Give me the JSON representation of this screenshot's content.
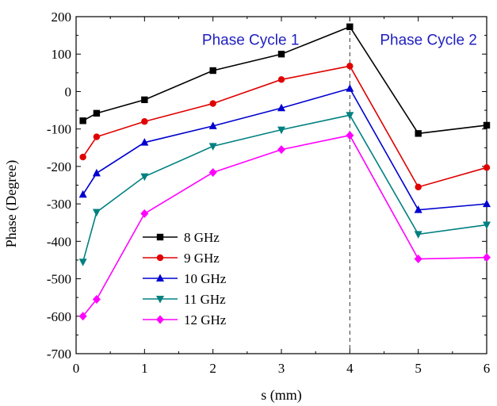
{
  "chart_data": {
    "type": "line",
    "xlabel": "s (mm)",
    "ylabel": "Phase (Degree)",
    "xlim": [
      0,
      6
    ],
    "ylim": [
      -700,
      200
    ],
    "xticks": [
      0,
      1,
      2,
      3,
      4,
      5,
      6
    ],
    "yticks": [
      -700,
      -600,
      -500,
      -400,
      -300,
      -200,
      -100,
      0,
      100,
      200
    ],
    "xtick_labels": [
      "0",
      "1",
      "2",
      "3",
      "4",
      "5",
      "6"
    ],
    "ytick_labels": [
      "-700",
      "-600",
      "-500",
      "-400",
      "-300",
      "-200",
      "-100",
      "0",
      "100",
      "200"
    ],
    "grid": false,
    "legend_position": "lower-left",
    "annotations": [
      {
        "text": "Phase Cycle 1",
        "x": 2.55,
        "y": 140,
        "color": "#1f1fbf"
      },
      {
        "text": "Phase Cycle 2",
        "x": 5.15,
        "y": 140,
        "color": "#1f1fbf"
      }
    ],
    "vline": {
      "x": 4,
      "style": "dashed"
    },
    "series": [
      {
        "name": "8 GHz",
        "color": "#000000",
        "marker": "square",
        "x": [
          0.1,
          0.3,
          1,
          2,
          3,
          4,
          5,
          6
        ],
        "y": [
          -78,
          -58,
          -22,
          56,
          100,
          173,
          -112,
          -90
        ]
      },
      {
        "name": "9 GHz",
        "color": "#e00000",
        "marker": "circle",
        "x": [
          0.1,
          0.3,
          1,
          2,
          3,
          4,
          5,
          6
        ],
        "y": [
          -175,
          -121,
          -80,
          -32,
          32,
          68,
          -255,
          -203
        ]
      },
      {
        "name": "10 GHz",
        "color": "#0000d0",
        "marker": "triangle-up",
        "x": [
          0.1,
          0.3,
          1,
          2,
          3,
          4,
          5,
          6
        ],
        "y": [
          -275,
          -218,
          -136,
          -92,
          -44,
          8,
          -316,
          -300
        ]
      },
      {
        "name": "11 GHz",
        "color": "#008080",
        "marker": "triangle-down",
        "x": [
          0.1,
          0.3,
          1,
          2,
          3,
          4,
          5,
          6
        ],
        "y": [
          -455,
          -322,
          -227,
          -146,
          -102,
          -63,
          -381,
          -356
        ]
      },
      {
        "name": "12 GHz",
        "color": "#ff00ff",
        "marker": "diamond",
        "x": [
          0.1,
          0.3,
          1,
          2,
          3,
          4,
          5,
          6
        ],
        "y": [
          -600,
          -555,
          -326,
          -216,
          -155,
          -117,
          -447,
          -443
        ]
      }
    ]
  }
}
